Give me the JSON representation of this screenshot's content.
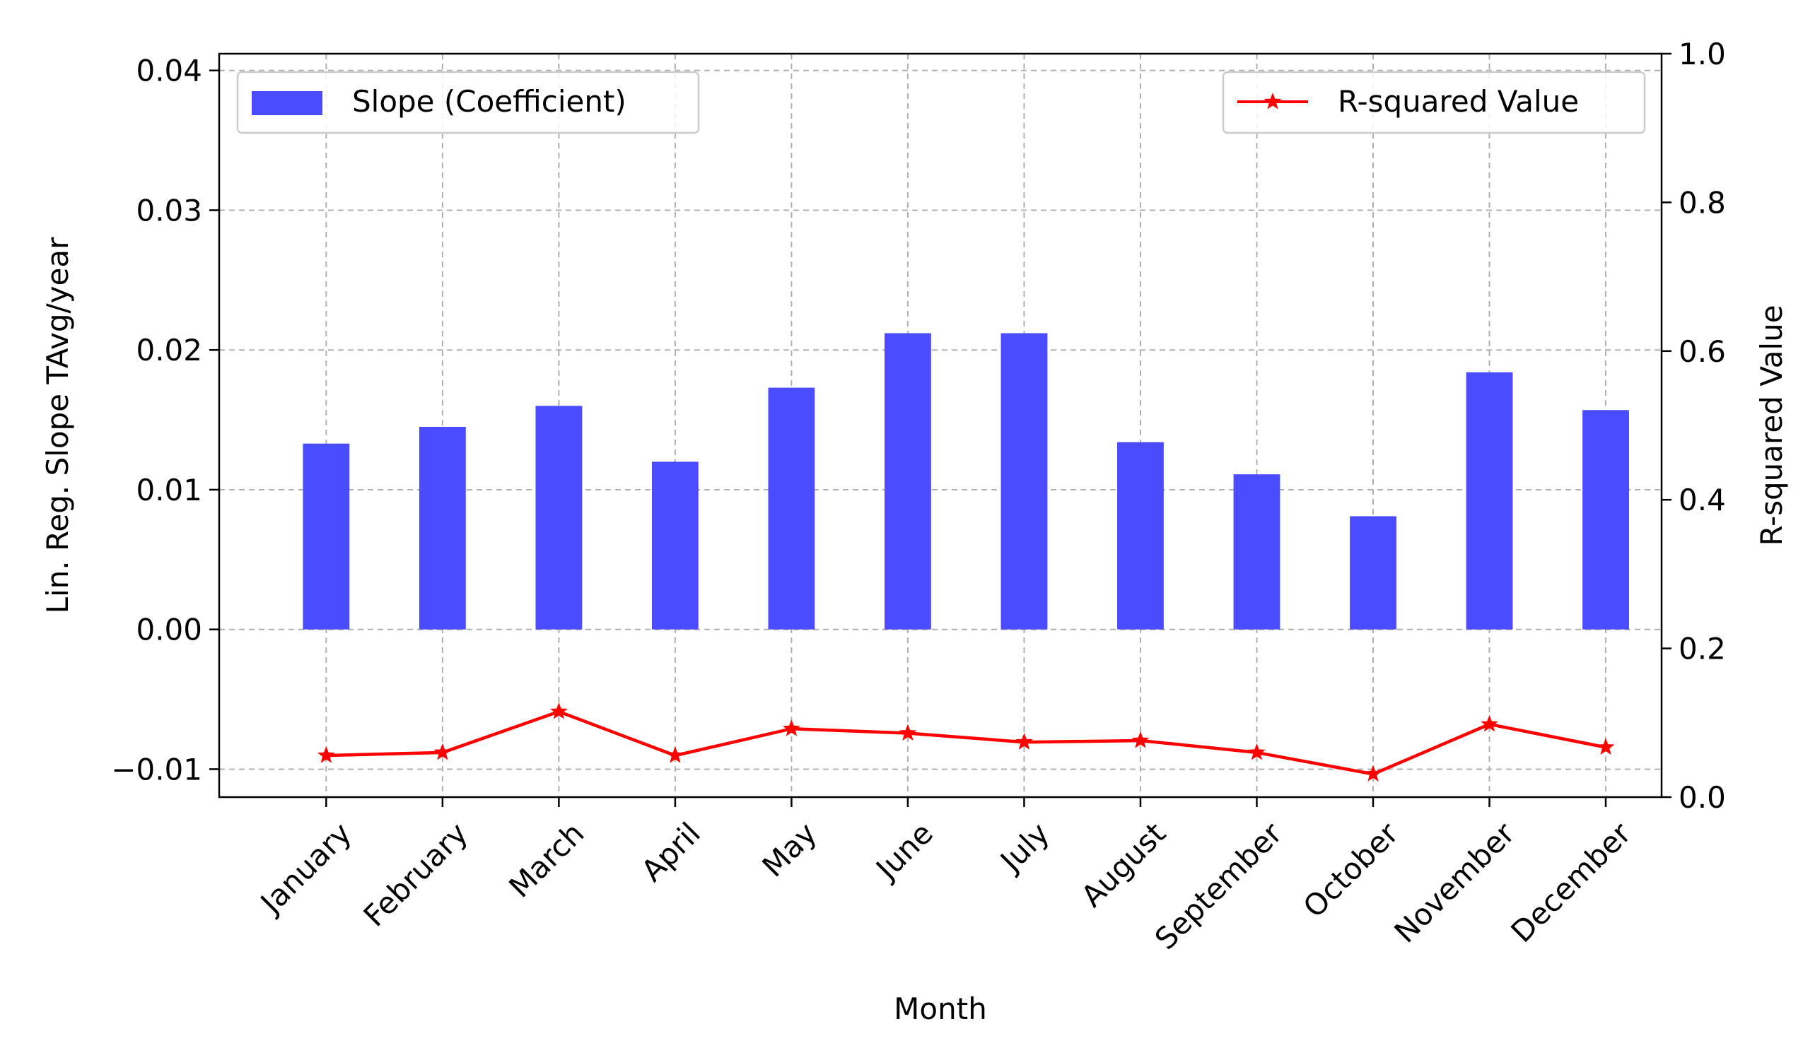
{
  "chart_data": {
    "type": "bar",
    "categories": [
      "January",
      "February",
      "March",
      "April",
      "May",
      "June",
      "July",
      "August",
      "September",
      "October",
      "November",
      "December"
    ],
    "series": [
      {
        "name": "Slope (Coefficient)",
        "type": "bar",
        "axis": "left",
        "color": "#4b4bff",
        "values": [
          0.0133,
          0.0145,
          0.016,
          0.012,
          0.0173,
          0.0212,
          0.0212,
          0.0134,
          0.0111,
          0.0081,
          0.0184,
          0.0157
        ]
      },
      {
        "name": "R-squared Value",
        "type": "line",
        "marker": "star",
        "axis": "right",
        "color": "#ff0000",
        "values": [
          0.056,
          0.06,
          0.115,
          0.056,
          0.092,
          0.086,
          0.074,
          0.076,
          0.06,
          0.031,
          0.098,
          0.067
        ]
      }
    ],
    "xlabel": "Month",
    "ylabel": "Lin. Reg. Slope TAvg/year",
    "y2label": "R-squared Value",
    "ylim": [
      -0.012,
      0.0412
    ],
    "y2lim": [
      0.0,
      1.0
    ],
    "yticks": [
      "−0.01",
      "0.00",
      "0.01",
      "0.02",
      "0.03",
      "0.04"
    ],
    "yticks_values": [
      -0.01,
      0.0,
      0.01,
      0.02,
      0.03,
      0.04
    ],
    "y2ticks": [
      "0.0",
      "0.2",
      "0.4",
      "0.6",
      "0.8",
      "1.0"
    ],
    "y2ticks_values": [
      0.0,
      0.2,
      0.4,
      0.6,
      0.8,
      1.0
    ],
    "grid": true,
    "legend_left": "upper-left",
    "legend_right": "upper-right"
  }
}
